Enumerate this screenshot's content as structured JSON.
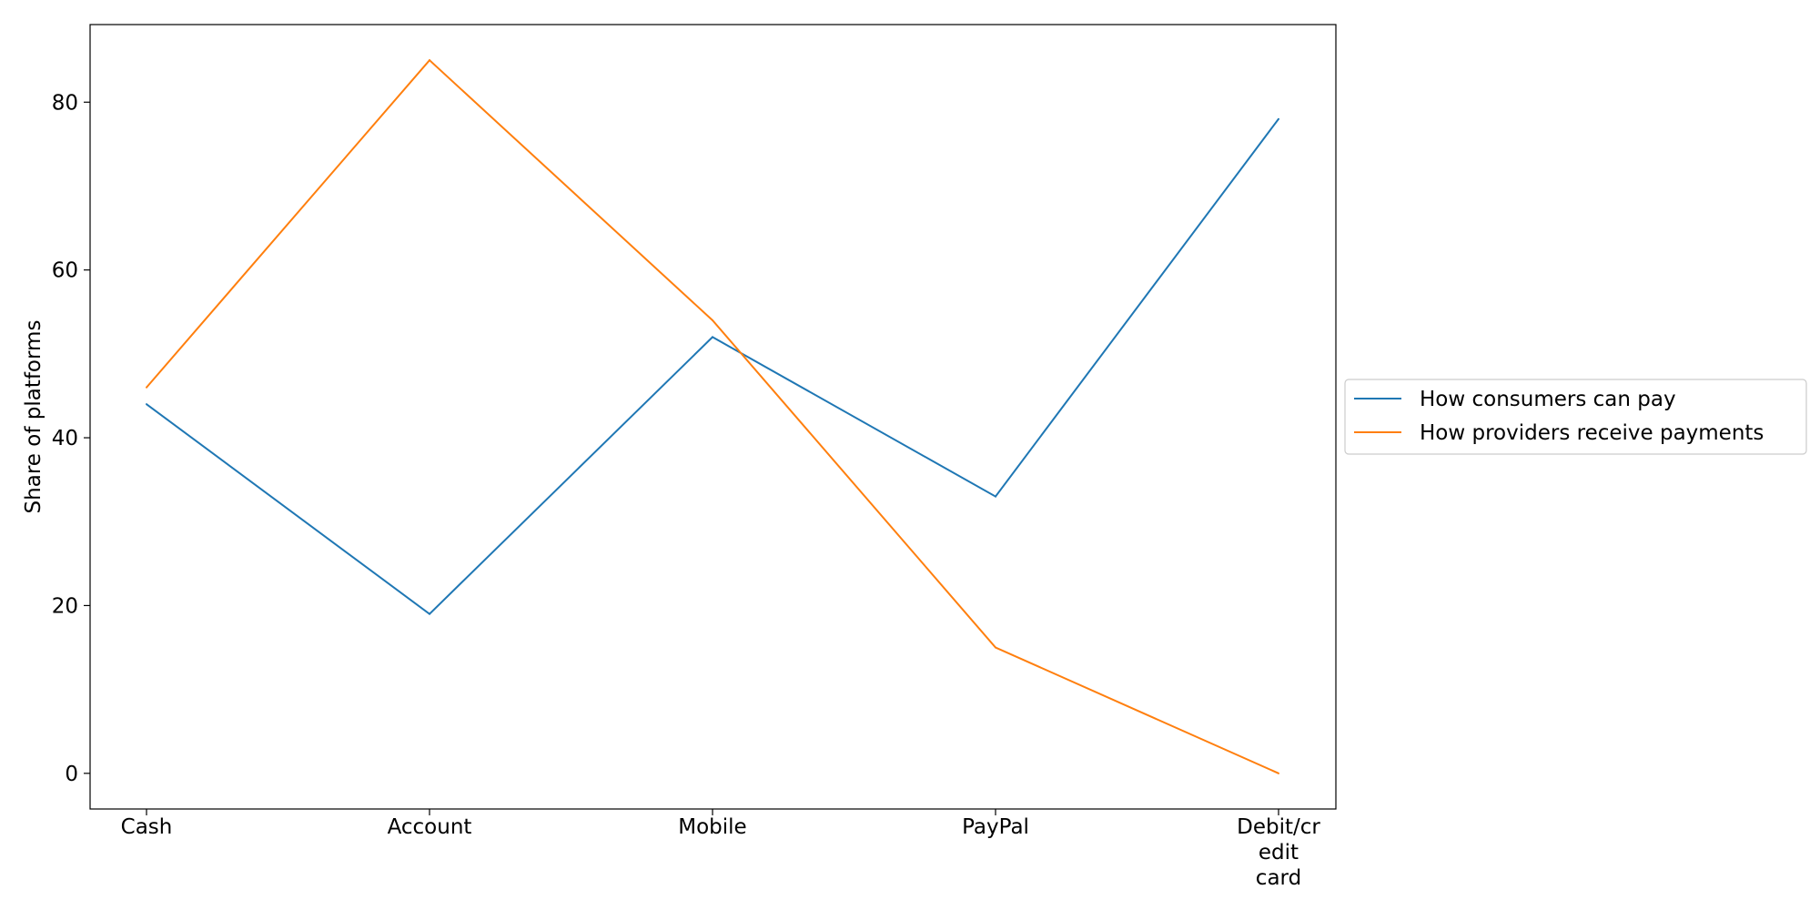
{
  "chart_data": {
    "type": "line",
    "categories": [
      "Cash",
      "Account",
      "Mobile",
      "PayPal",
      "Debit/credit card"
    ],
    "category_tick_lines": [
      [
        "Cash"
      ],
      [
        "Account"
      ],
      [
        "Mobile"
      ],
      [
        "PayPal"
      ],
      [
        "Debit/cr",
        "edit",
        "card"
      ]
    ],
    "series": [
      {
        "name": "How consumers can pay",
        "values": [
          44,
          19,
          52,
          33,
          78
        ],
        "color": "#1f77b4"
      },
      {
        "name": "How providers receive payments",
        "values": [
          46,
          85,
          54,
          15,
          0
        ],
        "color": "#ff7f0e"
      }
    ],
    "title": "",
    "xlabel": "",
    "ylabel": "Share of platforms",
    "ylim": [
      -4.25,
      89.25
    ],
    "yticks": [
      0,
      20,
      40,
      60,
      80
    ],
    "grid": false,
    "legend_position": "center-right outside"
  }
}
